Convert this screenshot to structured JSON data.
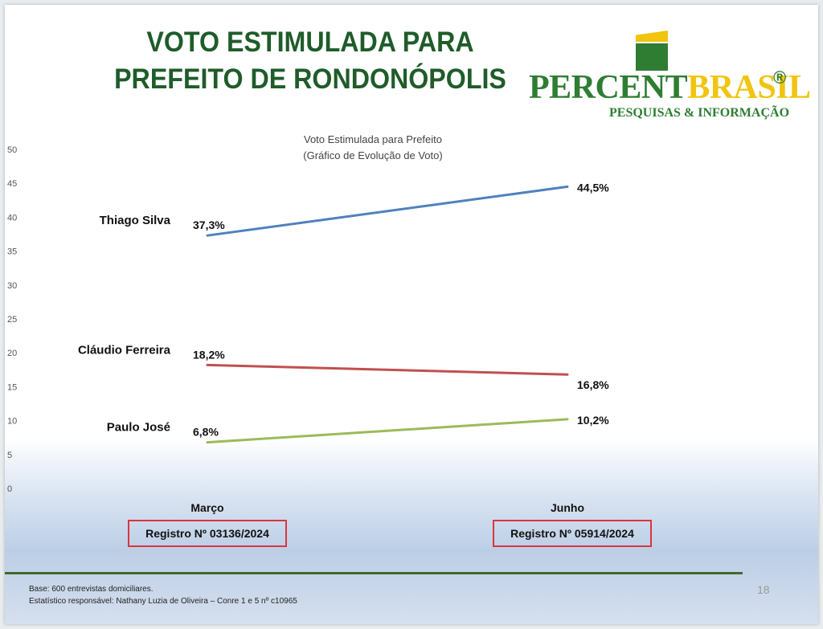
{
  "header": {
    "title_line1": "VOTO ESTIMULADA PARA",
    "title_line2": "PREFEITO DE RONDONÓPOLIS"
  },
  "logo": {
    "word_part1": "PERCENT",
    "word_part2": "BRASIL",
    "registered": "®",
    "tagline": "PESQUISAS & INFORMAÇÃO",
    "colors": {
      "green": "#2e7d32",
      "yellow": "#f1c40f"
    }
  },
  "chart_data": {
    "type": "line",
    "title": "Voto Estimulada para Prefeito",
    "subtitle": "(Gráfico de Evolução de Voto)",
    "ylim": [
      0,
      50
    ],
    "yticks": [
      0,
      5,
      10,
      15,
      20,
      25,
      30,
      35,
      40,
      45,
      50
    ],
    "categories": [
      "Março",
      "Junho"
    ],
    "registrations": [
      "Registro Nº 03136/2024",
      "Registro Nº 05914/2024"
    ],
    "grid": false,
    "series": [
      {
        "name": "Thiago Silva",
        "values": [
          37.3,
          44.5
        ],
        "labels": [
          "37,3%",
          "44,5%"
        ],
        "color": "#4f81bd"
      },
      {
        "name": "Cláudio Ferreira",
        "values": [
          18.2,
          16.8
        ],
        "labels": [
          "18,2%",
          "16,8%"
        ],
        "color": "#c0504d"
      },
      {
        "name": "Paulo José",
        "values": [
          6.8,
          10.2
        ],
        "labels": [
          "6,8%",
          "10,2%"
        ],
        "color": "#9bbb59"
      }
    ]
  },
  "footer": {
    "base": "Base: 600 entrevistas domiciliares.",
    "statistician": "Estatístico responsável: Nathany Luzia de Oliveira – Conre 1 e 5 nº c10965",
    "page_number": "18"
  }
}
